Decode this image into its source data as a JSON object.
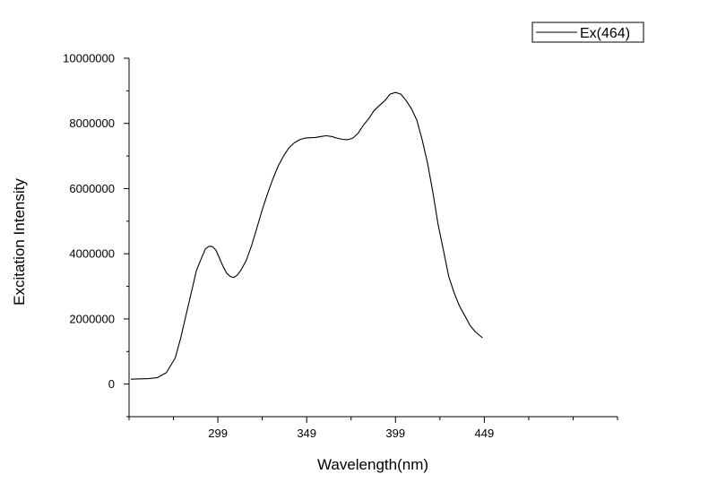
{
  "chart_data": {
    "type": "line",
    "title": "",
    "xlabel": "Wavelength(nm)",
    "ylabel": "Excitation Intensity",
    "xlim": [
      249,
      524
    ],
    "ylim": [
      -1000000,
      10000000
    ],
    "x_ticks": [
      299,
      349,
      399,
      449
    ],
    "y_ticks": [
      0,
      2000000,
      4000000,
      6000000,
      8000000,
      10000000
    ],
    "grid": false,
    "legend": "top-right",
    "series": [
      {
        "name": "Ex(464)",
        "color": "#000000",
        "x": [
          250,
          255,
          260,
          265,
          270,
          275,
          278,
          281,
          284,
          287,
          290,
          292,
          294,
          296,
          298,
          300,
          302,
          304,
          306,
          308,
          310,
          312,
          315,
          318,
          321,
          324,
          327,
          330,
          333,
          336,
          339,
          342,
          345,
          348,
          351,
          354,
          357,
          360,
          363,
          366,
          369,
          372,
          375,
          378,
          381,
          384,
          387,
          390,
          393,
          396,
          399,
          402,
          405,
          408,
          411,
          414,
          417,
          420,
          423,
          426,
          429,
          432,
          435,
          438,
          441,
          444,
          448
        ],
        "y": [
          150000,
          160000,
          165000,
          200000,
          350000,
          800000,
          1400000,
          2100000,
          2800000,
          3500000,
          3900000,
          4150000,
          4230000,
          4220000,
          4100000,
          3850000,
          3600000,
          3400000,
          3300000,
          3270000,
          3350000,
          3500000,
          3800000,
          4250000,
          4800000,
          5350000,
          5850000,
          6300000,
          6700000,
          7000000,
          7250000,
          7400000,
          7500000,
          7550000,
          7560000,
          7570000,
          7600000,
          7620000,
          7600000,
          7550000,
          7510000,
          7500000,
          7550000,
          7700000,
          7950000,
          8150000,
          8400000,
          8550000,
          8700000,
          8900000,
          8950000,
          8900000,
          8700000,
          8450000,
          8100000,
          7500000,
          6800000,
          5900000,
          4900000,
          4100000,
          3300000,
          2800000,
          2400000,
          2100000,
          1800000,
          1600000,
          1420000
        ]
      }
    ]
  }
}
